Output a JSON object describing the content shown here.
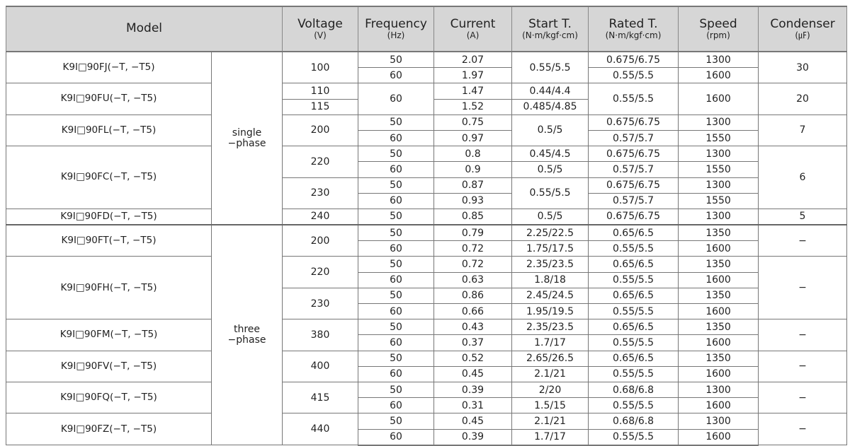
{
  "header": [
    {
      "main": "Model",
      "unit": ""
    },
    {
      "main": "Voltage",
      "unit": "(V)"
    },
    {
      "main": "Frequency",
      "unit": "(Hz)"
    },
    {
      "main": "Current",
      "unit": "(A)"
    },
    {
      "main": "Start T.",
      "unit": "(N·m/kgf·cm)"
    },
    {
      "main": "Rated T.",
      "unit": "(N·m/kgf·cm)"
    },
    {
      "main": "Speed",
      "unit": "(rpm)"
    },
    {
      "main": "Condenser",
      "unit": "(㎌)"
    }
  ],
  "columns": [
    "model",
    "phase",
    "voltage",
    "frequency",
    "current",
    "start_torque",
    "rated_torque",
    "speed",
    "condenser"
  ],
  "rows": [
    [
      "K9I□90FJ(−T, −T5)",
      "single\n−phase",
      "100",
      "50",
      "2.07",
      "0.55/5.5",
      "0.675/6.75",
      "1300",
      "30"
    ],
    [
      null,
      null,
      null,
      "60",
      "1.97",
      null,
      "0.55/5.5",
      "1600",
      null
    ],
    [
      "K9I□90FU(−T, −T5)",
      null,
      "110",
      "60",
      "1.47",
      "0.44/4.4",
      "0.55/5.5",
      "1600",
      "20"
    ],
    [
      null,
      null,
      "115",
      null,
      "1.52",
      "0.485/4.85",
      null,
      null,
      null
    ],
    [
      "K9I□90FL(−T, −T5)",
      null,
      "200",
      "50",
      "0.75",
      "0.5/5",
      "0.675/6.75",
      "1300",
      "7"
    ],
    [
      null,
      null,
      null,
      "60",
      "0.97",
      null,
      "0.57/5.7",
      "1550",
      null
    ],
    [
      "K9I□90FC(−T, −T5)",
      null,
      "220",
      "50",
      "0.8",
      "0.45/4.5",
      "0.675/6.75",
      "1300",
      "6"
    ],
    [
      null,
      null,
      null,
      "60",
      "0.9",
      "0.5/5",
      "0.57/5.7",
      "1550",
      null
    ],
    [
      null,
      null,
      "230",
      "50",
      "0.87",
      "0.55/5.5",
      "0.675/6.75",
      "1300",
      null
    ],
    [
      null,
      null,
      null,
      "60",
      "0.93",
      null,
      "0.57/5.7",
      "1550",
      null
    ],
    [
      "K9I□90FD(−T, −T5)",
      null,
      "240",
      "50",
      "0.85",
      "0.5/5",
      "0.675/6.75",
      "1300",
      "5"
    ],
    [
      "K9I□90FT(−T, −T5)",
      "three\n−phase",
      "200",
      "50",
      "0.79",
      "2.25/22.5",
      "0.65/6.5",
      "1350",
      "−"
    ],
    [
      null,
      null,
      null,
      "60",
      "0.72",
      "1.75/17.5",
      "0.55/5.5",
      "1600",
      null
    ],
    [
      "K9I□90FH(−T, −T5)",
      null,
      "220",
      "50",
      "0.72",
      "2.35/23.5",
      "0.65/6.5",
      "1350",
      "−"
    ],
    [
      null,
      null,
      null,
      "60",
      "0.63",
      "1.8/18",
      "0.55/5.5",
      "1600",
      null
    ],
    [
      null,
      null,
      "230",
      "50",
      "0.86",
      "2.45/24.5",
      "0.65/6.5",
      "1350",
      null
    ],
    [
      null,
      null,
      null,
      "60",
      "0.66",
      "1.95/19.5",
      "0.55/5.5",
      "1600",
      null
    ],
    [
      "K9I□90FM(−T, −T5)",
      null,
      "380",
      "50",
      "0.43",
      "2.35/23.5",
      "0.65/6.5",
      "1350",
      "−"
    ],
    [
      null,
      null,
      null,
      "60",
      "0.37",
      "1.7/17",
      "0.55/5.5",
      "1600",
      null
    ],
    [
      "K9I□90FV(−T, −T5)",
      null,
      "400",
      "50",
      "0.52",
      "2.65/26.5",
      "0.65/6.5",
      "1350",
      "−"
    ],
    [
      null,
      null,
      null,
      "60",
      "0.45",
      "2.1/21",
      "0.55/5.5",
      "1600",
      null
    ],
    [
      "K9I□90FQ(−T, −T5)",
      null,
      "415",
      "50",
      "0.39",
      "2/20",
      "0.68/6.8",
      "1300",
      "−"
    ],
    [
      null,
      null,
      null,
      "60",
      "0.31",
      "1.5/15",
      "0.55/5.5",
      "1600",
      null
    ],
    [
      "K9I□90FZ(−T, −T5)",
      null,
      "440",
      "50",
      "0.45",
      "2.1/21",
      "0.68/6.8",
      "1300",
      "−"
    ],
    [
      null,
      null,
      null,
      "60",
      "0.39",
      "1.7/17",
      "0.55/5.5",
      "1600",
      null
    ]
  ]
}
